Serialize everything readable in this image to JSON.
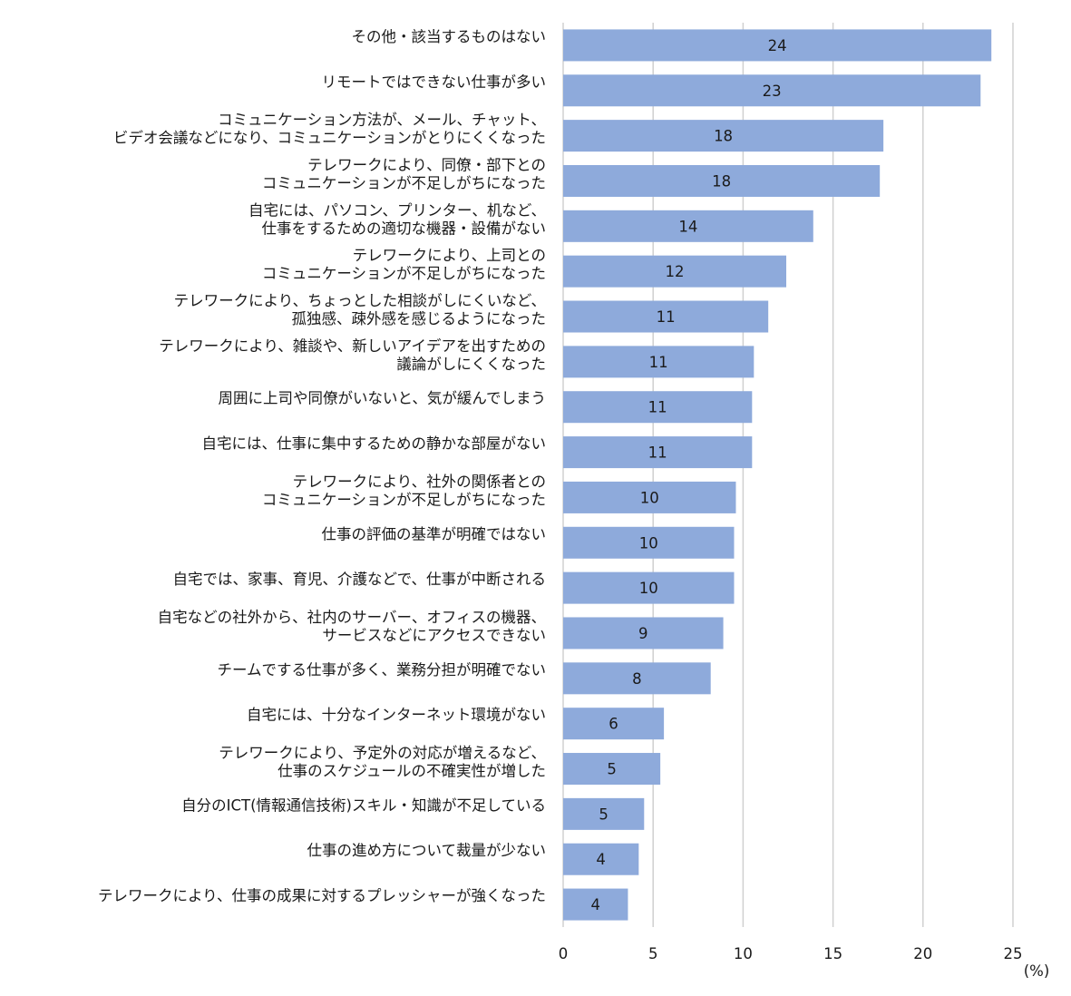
{
  "chart_data": {
    "type": "bar",
    "orientation": "horizontal",
    "title": "",
    "xlabel": "",
    "ylabel": "",
    "unit_label": "(%)",
    "xlim": [
      0,
      25
    ],
    "xticks": [
      0,
      5,
      10,
      15,
      20,
      25
    ],
    "xtick_labels": [
      "0",
      "5",
      "10",
      "15",
      "20",
      "25"
    ],
    "grid": true,
    "bar_color": "#8eaadb",
    "categories": [
      [
        "その他・該当するものはない"
      ],
      [
        "リモートではできない仕事が多い"
      ],
      [
        "コミュニケーション方法が、メール、チャット、",
        "ビデオ会議などになり、コミュニケーションがとりにくくなった"
      ],
      [
        "テレワークにより、同僚・部下との",
        "コミュニケーションが不足しがちになった"
      ],
      [
        "自宅には、パソコン、プリンター、机など、",
        "仕事をするための適切な機器・設備がない"
      ],
      [
        "テレワークにより、上司との",
        "コミュニケーションが不足しがちになった"
      ],
      [
        "テレワークにより、ちょっとした相談がしにくいなど、",
        "孤独感、疎外感を感じるようになった"
      ],
      [
        "テレワークにより、雑談や、新しいアイデアを出すための",
        "議論がしにくくなった"
      ],
      [
        "周囲に上司や同僚がいないと、気が緩んでしまう"
      ],
      [
        "自宅には、仕事に集中するための静かな部屋がない"
      ],
      [
        "テレワークにより、社外の関係者との",
        "コミュニケーションが不足しがちになった"
      ],
      [
        "仕事の評価の基準が明確ではない"
      ],
      [
        "自宅では、家事、育児、介護などで、仕事が中断される"
      ],
      [
        "自宅などの社外から、社内のサーバー、オフィスの機器、",
        "サービスなどにアクセスできない"
      ],
      [
        "チームでする仕事が多く、業務分担が明確でない"
      ],
      [
        "自宅には、十分なインターネット環境がない"
      ],
      [
        "テレワークにより、予定外の対応が増えるなど、",
        "仕事のスケジュールの不確実性が増した"
      ],
      [
        "自分のICT(情報通信技術)スキル・知識が不足している"
      ],
      [
        "仕事の進め方について裁量が少ない"
      ],
      [
        "テレワークにより、仕事の成果に対するプレッシャーが強くなった"
      ]
    ],
    "values": [
      23.8,
      23.2,
      17.8,
      17.6,
      13.9,
      12.4,
      11.4,
      10.6,
      10.5,
      10.5,
      9.6,
      9.5,
      9.5,
      8.9,
      8.2,
      5.6,
      5.4,
      4.5,
      4.2,
      3.6
    ],
    "data_labels": [
      "24",
      "23",
      "18",
      "18",
      "14",
      "12",
      "11",
      "11",
      "11",
      "11",
      "10",
      "10",
      "10",
      "9",
      "8",
      "6",
      "5",
      "5",
      "4",
      "4"
    ]
  }
}
